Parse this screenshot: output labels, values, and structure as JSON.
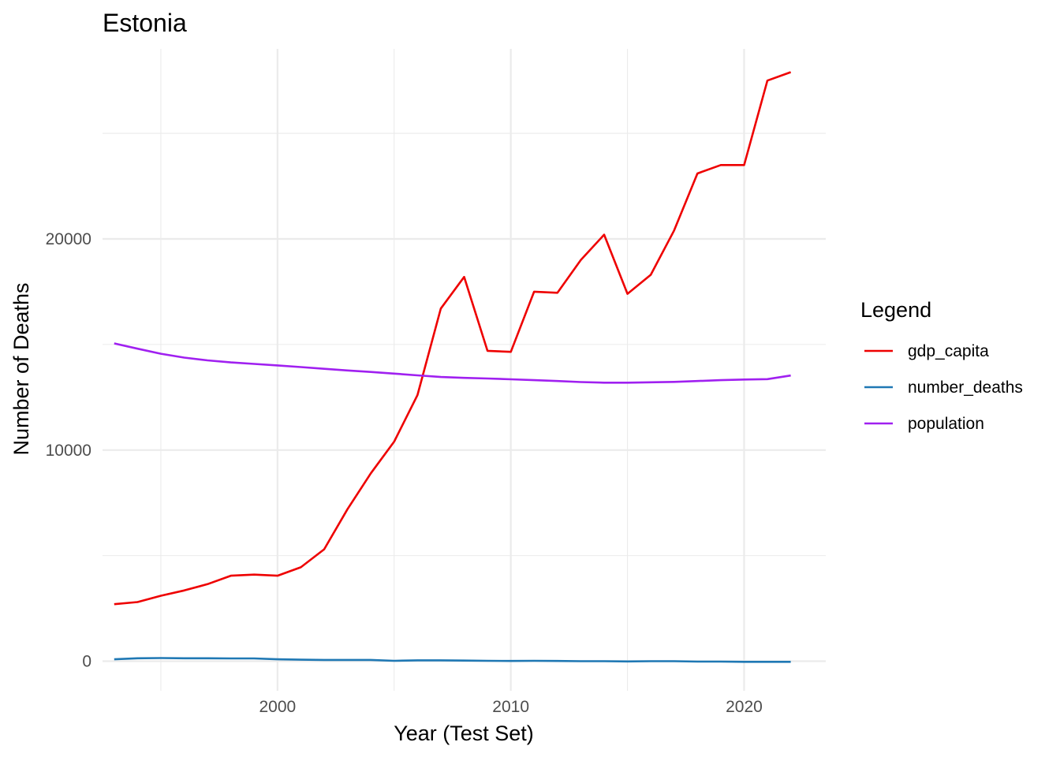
{
  "chart_data": {
    "type": "line",
    "title": "Estonia",
    "xlabel": "Year (Test Set)",
    "ylabel": "Number of Deaths",
    "xlim": [
      1992.5,
      2023.5
    ],
    "ylim": [
      -1400,
      29000
    ],
    "x_ticks": [
      2000,
      2010,
      2020
    ],
    "x_minor_ticks": [
      1995,
      2005,
      2015
    ],
    "y_ticks": [
      0,
      10000,
      20000
    ],
    "y_minor_ticks": [
      5000,
      15000,
      25000
    ],
    "x_tick_labels": [
      "2000",
      "2010",
      "2020"
    ],
    "y_tick_labels": [
      "0",
      "10000",
      "20000"
    ],
    "grid": true,
    "legend": {
      "title": "Legend",
      "position": "right",
      "entries": [
        "gdp_capita",
        "number_deaths",
        "population"
      ]
    },
    "x": [
      1993,
      1994,
      1995,
      1996,
      1997,
      1998,
      1999,
      2000,
      2001,
      2002,
      2003,
      2004,
      2005,
      2006,
      2007,
      2008,
      2009,
      2010,
      2011,
      2012,
      2013,
      2014,
      2015,
      2016,
      2017,
      2018,
      2019,
      2020,
      2021,
      2022
    ],
    "series": [
      {
        "name": "gdp_capita",
        "color": "#ee0000",
        "values": [
          2700,
          2800,
          3100,
          3350,
          3650,
          4050,
          4100,
          4050,
          4450,
          5300,
          7200,
          8900,
          10400,
          12600,
          16700,
          18200,
          14700,
          14650,
          17500,
          17450,
          19000,
          20200,
          17400,
          18300,
          20400,
          23100,
          23500,
          23500,
          27500,
          27900
        ]
      },
      {
        "name": "number_deaths",
        "color": "#1f78b4",
        "values": [
          90,
          140,
          150,
          140,
          140,
          130,
          130,
          90,
          70,
          60,
          60,
          60,
          20,
          40,
          40,
          30,
          20,
          10,
          20,
          10,
          0,
          0,
          -10,
          0,
          0,
          -20,
          -20,
          -30,
          -30,
          -30
        ]
      },
      {
        "name": "population",
        "color": "#a020f0",
        "values": [
          15050,
          14800,
          14560,
          14380,
          14250,
          14150,
          14080,
          14010,
          13930,
          13850,
          13770,
          13700,
          13620,
          13540,
          13460,
          13420,
          13390,
          13350,
          13310,
          13270,
          13220,
          13190,
          13190,
          13210,
          13230,
          13270,
          13310,
          13340,
          13360,
          13530
        ]
      }
    ]
  }
}
